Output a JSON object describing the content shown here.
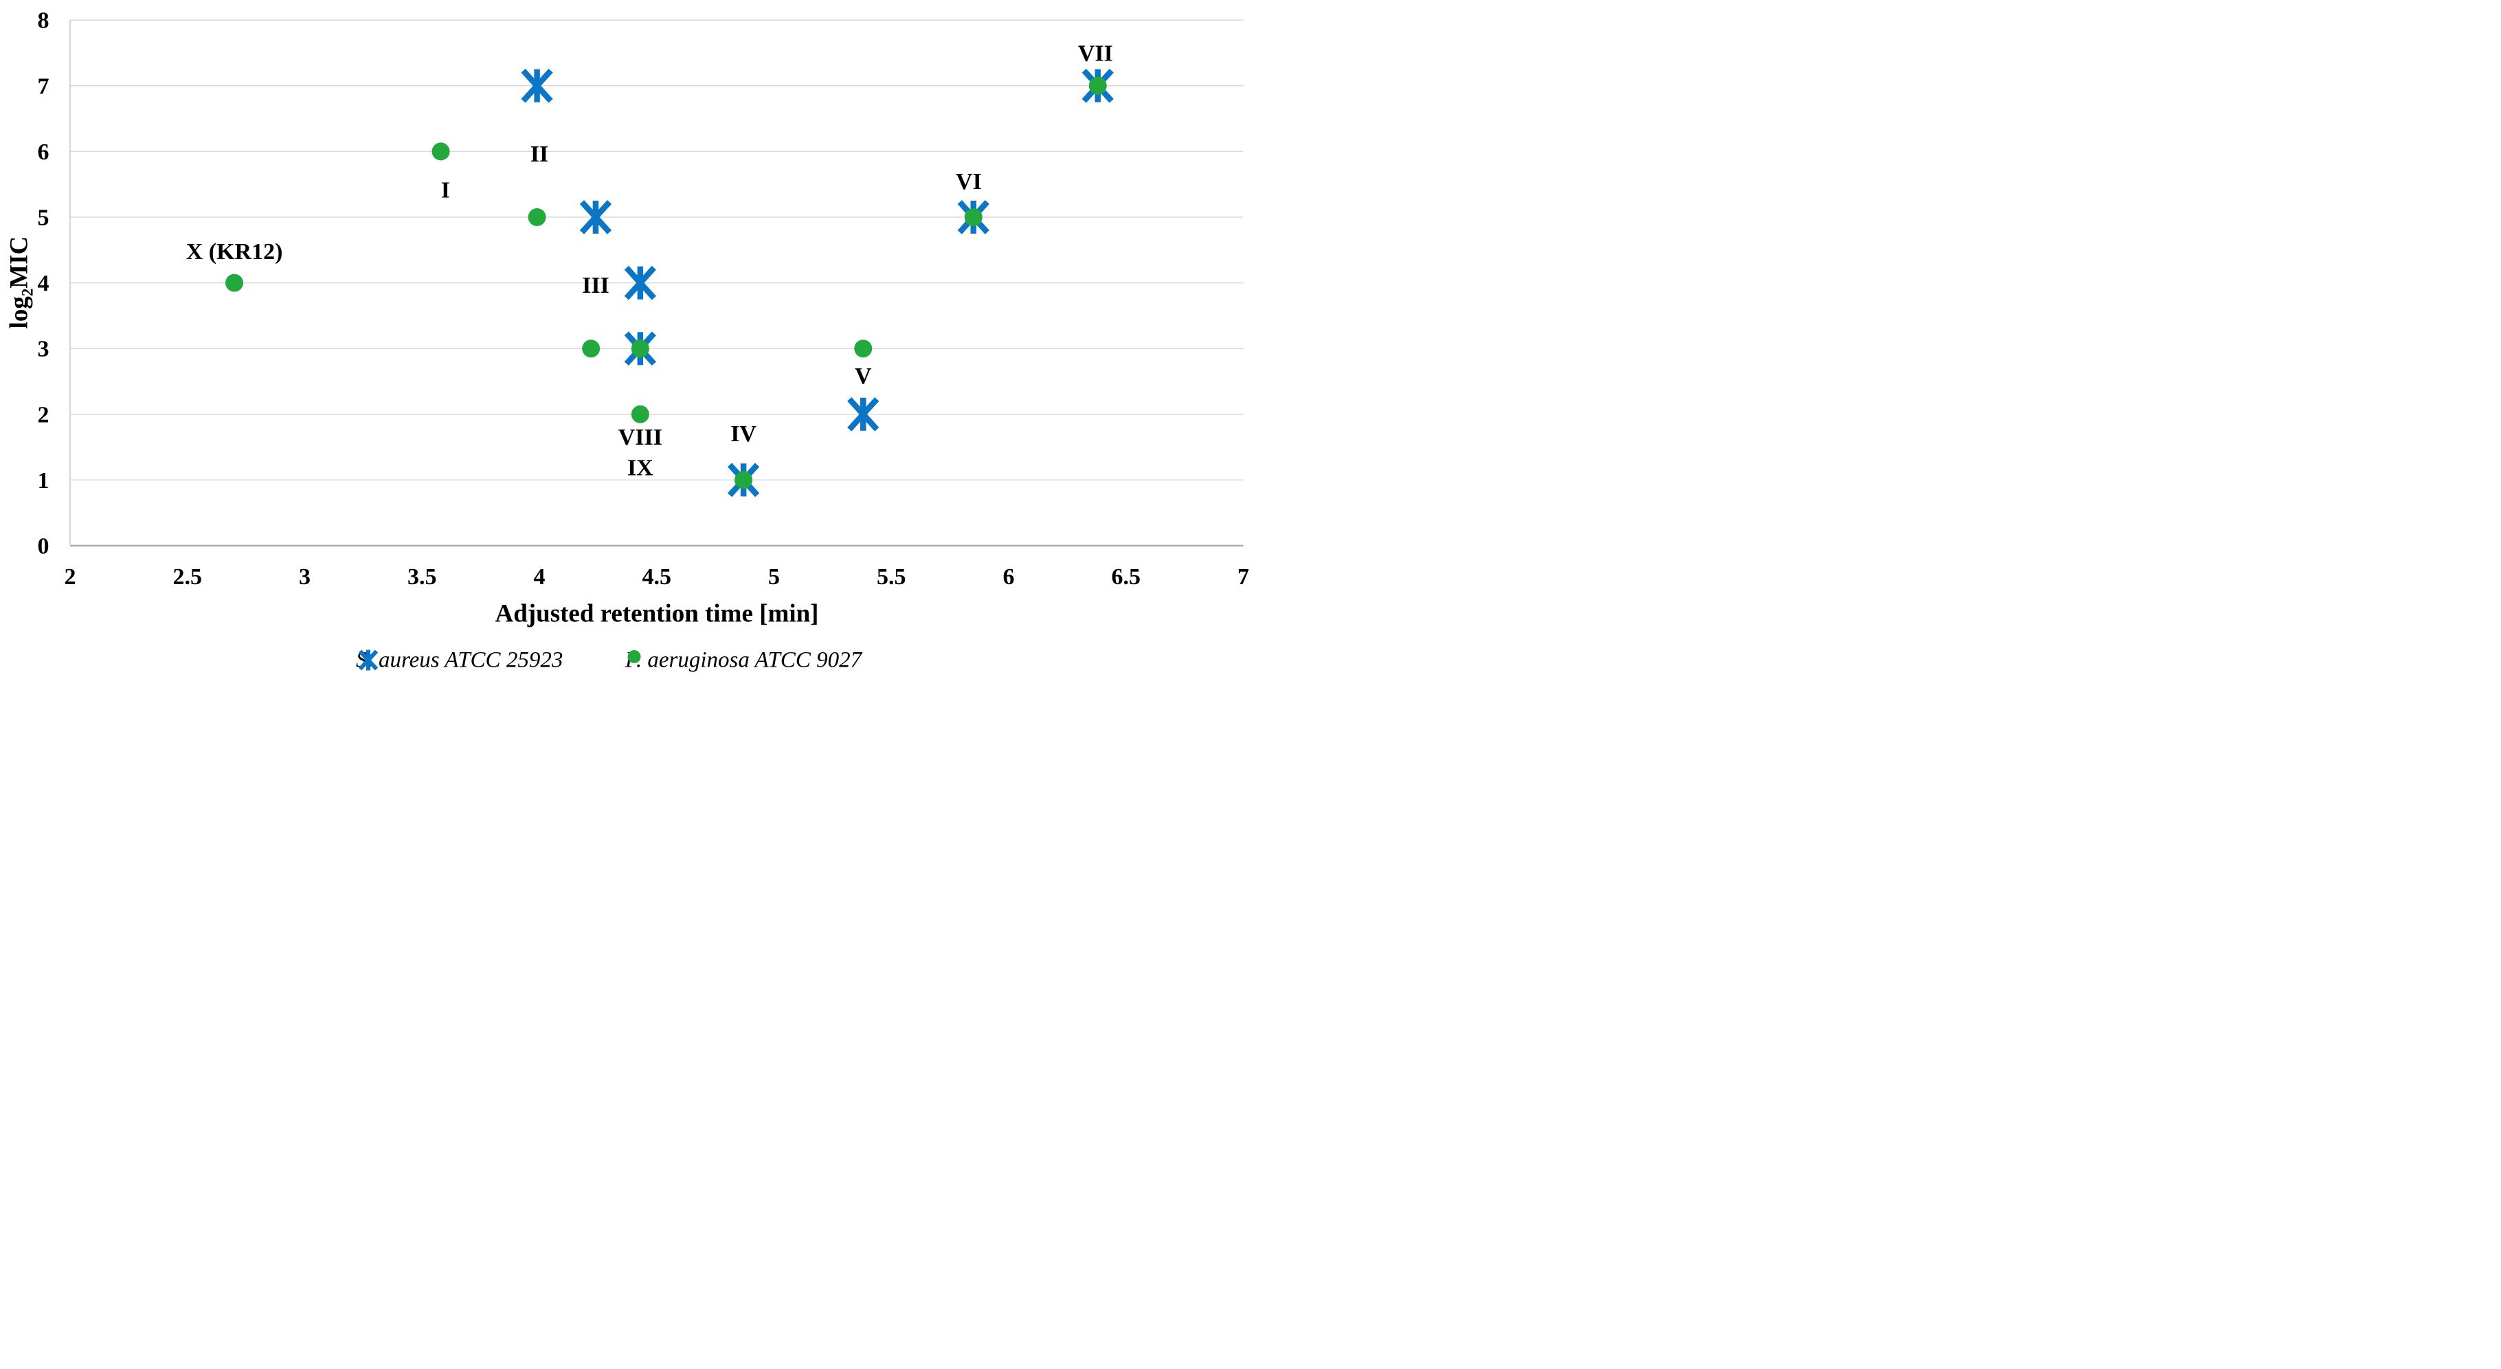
{
  "chart_data": {
    "type": "scatter",
    "title": "",
    "xlabel": "Adjusted retention time [min]",
    "ylabel": "log2MIC",
    "ylabel_parts": {
      "prefix": "log",
      "sub": "2",
      "suffix": "MIC"
    },
    "xlim": [
      2,
      7
    ],
    "ylim": [
      0,
      8
    ],
    "x_ticks": [
      "2",
      "2.5",
      "3",
      "3.5",
      "4",
      "4.5",
      "5",
      "5.5",
      "6",
      "6.5",
      "7"
    ],
    "y_ticks": [
      "0",
      "1",
      "2",
      "3",
      "4",
      "5",
      "6",
      "7",
      "8"
    ],
    "grid": "horizontal",
    "legend_position": "bottom",
    "colors": {
      "series_blue": "#0C75C6",
      "series_green": "#22A83C",
      "gridline": "#D9D9D9",
      "axis_line": "#ABABAB",
      "plot_border": "#C9C9C9",
      "text": "#000000"
    },
    "series": [
      {
        "name": "S. aureus ATCC 25923",
        "marker": "asterisk",
        "color": "#0C75C6",
        "points": [
          [
            3.99,
            7
          ],
          [
            4.24,
            5
          ],
          [
            4.43,
            4
          ],
          [
            4.43,
            3
          ],
          [
            4.87,
            1
          ],
          [
            5.38,
            2
          ],
          [
            5.85,
            5
          ],
          [
            6.38,
            7
          ]
        ]
      },
      {
        "name": "P. aeruginosa ATCC 9027",
        "marker": "circle",
        "color": "#22A83C",
        "points": [
          [
            2.7,
            4
          ],
          [
            3.58,
            6
          ],
          [
            3.99,
            5
          ],
          [
            4.22,
            3
          ],
          [
            4.43,
            3
          ],
          [
            4.43,
            2
          ],
          [
            4.87,
            1
          ],
          [
            5.38,
            3
          ],
          [
            5.85,
            5
          ],
          [
            6.38,
            7
          ]
        ]
      }
    ],
    "annotations": [
      {
        "text": "X (KR12)",
        "x": 2.7,
        "y": 4.48
      },
      {
        "text": "I",
        "x": 3.6,
        "y": 5.42
      },
      {
        "text": "II",
        "x": 4.0,
        "y": 5.97
      },
      {
        "text": "III",
        "x": 4.24,
        "y": 3.97
      },
      {
        "text": "IV",
        "x": 4.87,
        "y": 1.71
      },
      {
        "text": "V",
        "x": 5.38,
        "y": 2.59
      },
      {
        "text": "VI",
        "x": 5.83,
        "y": 5.55
      },
      {
        "text": "VII",
        "x": 6.37,
        "y": 7.5
      },
      {
        "text": "VIII",
        "x": 4.43,
        "y": 1.66
      },
      {
        "text": "IX",
        "x": 4.43,
        "y": 1.19
      }
    ]
  }
}
